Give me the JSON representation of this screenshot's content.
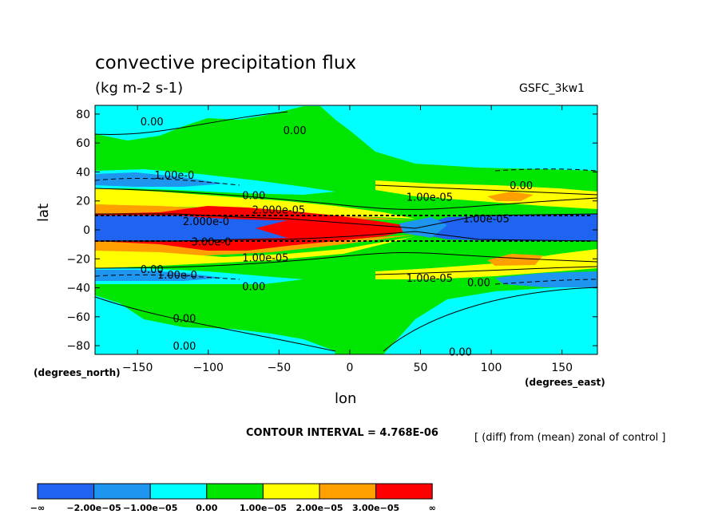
{
  "header": {
    "title": "convective precipitation flux",
    "units": "(kg m-2 s-1)",
    "dataset": "GSFC_3kw1"
  },
  "footer": {
    "contour_interval": "CONTOUR INTERVAL = 4.768E-06",
    "note": "[ (diff) from (mean) zonal of control ]"
  },
  "chart_data": {
    "type": "contour map",
    "title": "convective precipitation flux",
    "subtitle": "(kg m-2 s-1)",
    "xlabel": "lon",
    "ylabel": "lat",
    "x_units_label": "(degrees_east)",
    "y_units_label": "(degrees_north)",
    "xlim": [
      -180,
      175
    ],
    "ylim": [
      -86,
      86
    ],
    "xticks": [
      -150,
      -100,
      -50,
      0,
      50,
      100,
      150
    ],
    "yticks": [
      80,
      60,
      40,
      20,
      0,
      -20,
      -40,
      -60,
      -80
    ],
    "xtick_labels": [
      "−150",
      "−100",
      "−50",
      "0",
      "50",
      "100",
      "150"
    ],
    "ytick_labels": [
      "80",
      "60",
      "40",
      "20",
      "0",
      "−20",
      "−40",
      "−60",
      "−80"
    ],
    "contour_interval": 4.768e-06,
    "contour_labels": [
      {
        "text": "0.00",
        "lon": -148,
        "lat": 75
      },
      {
        "text": "0.00",
        "lon": -47,
        "lat": 69
      },
      {
        "text": "1.00e-0",
        "lon": -138,
        "lat": 38
      },
      {
        "text": "0.00",
        "lon": -76,
        "lat": 24
      },
      {
        "text": "2.000e-05",
        "lon": -69,
        "lat": 14
      },
      {
        "text": "2.000e-0",
        "lon": -118,
        "lat": 6
      },
      {
        "text": "3.00e-0",
        "lon": -112,
        "lat": -8
      },
      {
        "text": "1.00e-05",
        "lon": 40,
        "lat": 23
      },
      {
        "text": "1.00e-05",
        "lon": 80,
        "lat": 8
      },
      {
        "text": "0.00",
        "lon": 113,
        "lat": 31
      },
      {
        "text": "1.00e-05",
        "lon": -76,
        "lat": -19
      },
      {
        "text": "0.00",
        "lon": -148,
        "lat": -27
      },
      {
        "text": "1.00e-0",
        "lon": -136,
        "lat": -31
      },
      {
        "text": "1.00e-05",
        "lon": 40,
        "lat": -33
      },
      {
        "text": "0.00",
        "lon": 83,
        "lat": -36
      },
      {
        "text": "0.00",
        "lon": -76,
        "lat": -39
      },
      {
        "text": "0.00",
        "lon": -125,
        "lat": -61
      },
      {
        "text": "0.00",
        "lon": -125,
        "lat": -80
      },
      {
        "text": "0.00",
        "lon": 70,
        "lat": -84
      }
    ],
    "colorbar": {
      "labels": [
        "−∞",
        "−2.00e−05",
        "−1.00e−05",
        "0.00",
        "1.00e−05",
        "2.00e−05",
        "3.00e−05",
        "∞"
      ],
      "colors": [
        "#1e64f0",
        "#1e96f0",
        "#00ffff",
        "#00e600",
        "#ffff00",
        "#ffa000",
        "#ff0000"
      ]
    },
    "levels_colors": {
      "dark_blue": "#1e64f0",
      "mid_blue": "#1e96f0",
      "cyan": "#00ffff",
      "green": "#00e600",
      "yellow": "#ffff00",
      "orange": "#ffa000",
      "red": "#ff0000"
    }
  }
}
